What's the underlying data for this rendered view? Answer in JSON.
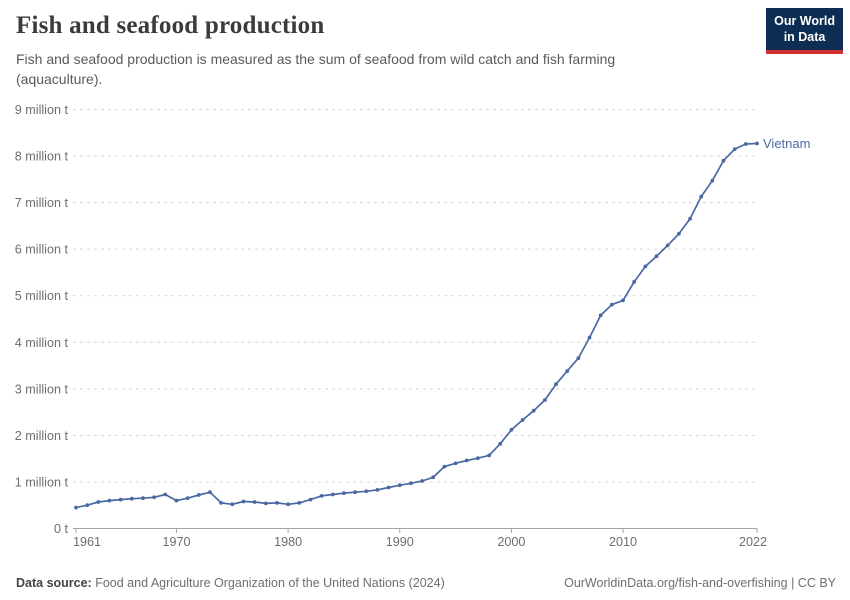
{
  "header": {
    "title": "Fish and seafood production",
    "subtitle": "Fish and seafood production is measured as the sum of seafood from wild catch and fish farming (aquaculture).",
    "logo": {
      "line1": "Our World",
      "line2": "in Data"
    }
  },
  "chart_data": {
    "type": "line",
    "title": "Fish and seafood production",
    "unit": "million t",
    "xlim": [
      1961,
      2022
    ],
    "ylim": [
      0,
      9
    ],
    "grid": "horizontal-dashed",
    "legend_position": "end-of-line-label",
    "x_ticks": [
      1961,
      1970,
      1980,
      1990,
      2000,
      2010,
      2022
    ],
    "y_ticks": [
      {
        "value": 0,
        "label": "0 t"
      },
      {
        "value": 1,
        "label": "1 million t"
      },
      {
        "value": 2,
        "label": "2 million t"
      },
      {
        "value": 3,
        "label": "3 million t"
      },
      {
        "value": 4,
        "label": "4 million t"
      },
      {
        "value": 5,
        "label": "5 million t"
      },
      {
        "value": 6,
        "label": "6 million t"
      },
      {
        "value": 7,
        "label": "7 million t"
      },
      {
        "value": 8,
        "label": "8 million t"
      },
      {
        "value": 9,
        "label": "9 million t"
      }
    ],
    "series": [
      {
        "name": "Vietnam",
        "color": "#4a69a3",
        "x": [
          1961,
          1962,
          1963,
          1964,
          1965,
          1966,
          1967,
          1968,
          1969,
          1970,
          1971,
          1972,
          1973,
          1974,
          1975,
          1976,
          1977,
          1978,
          1979,
          1980,
          1981,
          1982,
          1983,
          1984,
          1985,
          1986,
          1987,
          1988,
          1989,
          1990,
          1991,
          1992,
          1993,
          1994,
          1995,
          1996,
          1997,
          1998,
          1999,
          2000,
          2001,
          2002,
          2003,
          2004,
          2005,
          2006,
          2007,
          2008,
          2009,
          2010,
          2011,
          2012,
          2013,
          2014,
          2015,
          2016,
          2017,
          2018,
          2019,
          2020,
          2021,
          2022
        ],
        "values": [
          0.45,
          0.5,
          0.57,
          0.6,
          0.62,
          0.64,
          0.65,
          0.67,
          0.73,
          0.6,
          0.65,
          0.72,
          0.78,
          0.55,
          0.52,
          0.58,
          0.57,
          0.54,
          0.55,
          0.52,
          0.55,
          0.62,
          0.7,
          0.73,
          0.76,
          0.78,
          0.8,
          0.83,
          0.88,
          0.93,
          0.97,
          1.02,
          1.1,
          1.33,
          1.4,
          1.46,
          1.51,
          1.57,
          1.82,
          2.12,
          2.33,
          2.53,
          2.76,
          3.1,
          3.38,
          3.66,
          4.1,
          4.58,
          4.81,
          4.9,
          5.3,
          5.63,
          5.85,
          6.08,
          6.33,
          6.65,
          7.13,
          7.47,
          7.9,
          8.15,
          8.26,
          8.27
        ]
      }
    ]
  },
  "footer": {
    "source_label": "Data source:",
    "source_text": "Food and Agriculture Organization of the United Nations (2024)",
    "link_text": "OurWorldinData.org/fish-and-overfishing",
    "separator": "|",
    "license": "CC BY"
  }
}
